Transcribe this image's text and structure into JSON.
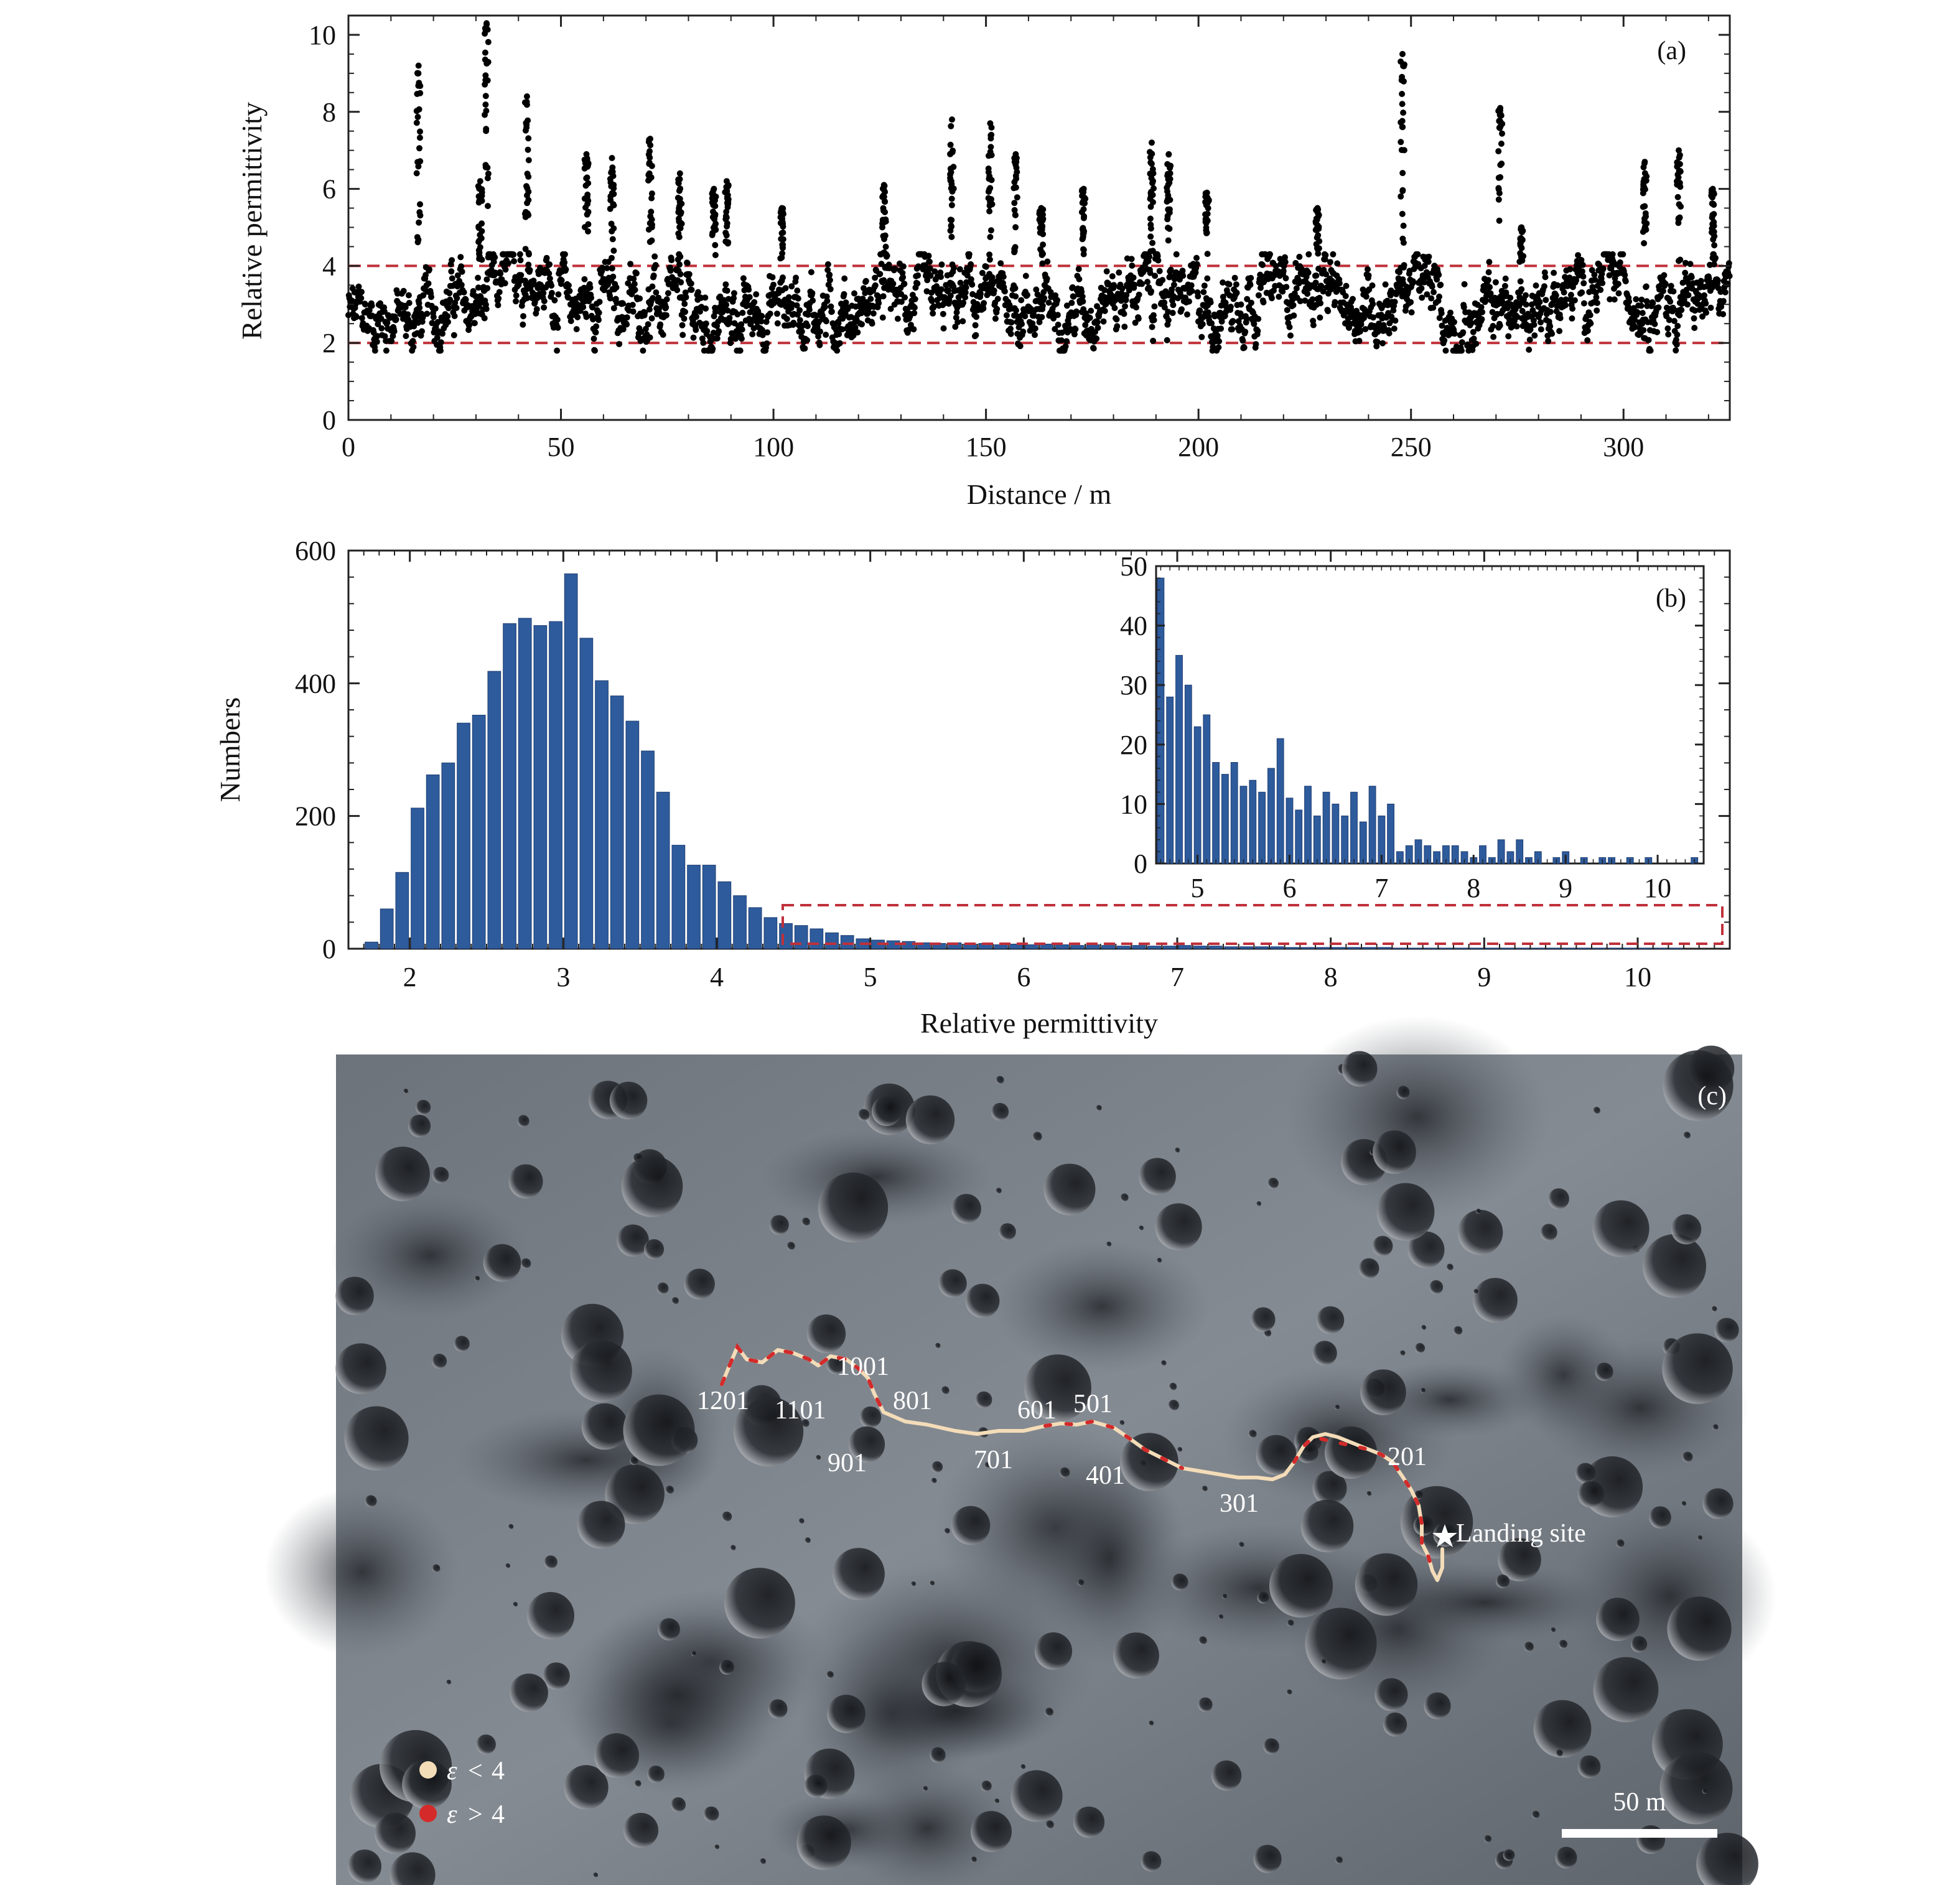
{
  "chart_data": [
    {
      "panel": "(a)",
      "type": "scatter",
      "xlabel": "Distance / m",
      "ylabel": "Relative permittivity",
      "xlim": [
        0,
        325
      ],
      "ylim": [
        0,
        10.5
      ],
      "x_ticks": [
        "0",
        "50",
        "100",
        "150",
        "200",
        "250",
        "300"
      ],
      "y_ticks": [
        "0",
        "2",
        "4",
        "6",
        "8",
        "10"
      ],
      "reference_lines": [
        2,
        4
      ],
      "grid": false,
      "colors": {
        "points": "#000000",
        "reference_line": "#c0303a"
      },
      "baseline_profile": [
        [
          0,
          2.7
        ],
        [
          5,
          2.6
        ],
        [
          10,
          2.8
        ],
        [
          15,
          2.5
        ],
        [
          20,
          2.9
        ],
        [
          25,
          3.1
        ],
        [
          30,
          2.8
        ],
        [
          35,
          3.3
        ],
        [
          40,
          4.2
        ],
        [
          45,
          3.7
        ],
        [
          50,
          3.2
        ],
        [
          55,
          3.0
        ],
        [
          60,
          3.3
        ],
        [
          65,
          2.9
        ],
        [
          70,
          3.1
        ],
        [
          75,
          2.8
        ],
        [
          80,
          3.0
        ],
        [
          85,
          2.4
        ],
        [
          90,
          2.7
        ],
        [
          95,
          2.6
        ],
        [
          100,
          3.0
        ],
        [
          105,
          3.1
        ],
        [
          110,
          2.8
        ],
        [
          115,
          2.9
        ],
        [
          120,
          2.8
        ],
        [
          125,
          3.3
        ],
        [
          130,
          3.2
        ],
        [
          135,
          3.0
        ],
        [
          140,
          2.9
        ],
        [
          145,
          3.2
        ],
        [
          150,
          3.0
        ],
        [
          155,
          3.1
        ],
        [
          160,
          3.0
        ],
        [
          165,
          2.8
        ],
        [
          170,
          2.9
        ],
        [
          175,
          3.1
        ],
        [
          180,
          3.3
        ],
        [
          185,
          3.4
        ],
        [
          190,
          3.5
        ],
        [
          195,
          3.2
        ],
        [
          200,
          3.0
        ],
        [
          205,
          2.9
        ],
        [
          210,
          3.3
        ],
        [
          215,
          3.4
        ],
        [
          220,
          3.5
        ],
        [
          225,
          3.6
        ],
        [
          230,
          3.2
        ],
        [
          235,
          3.0
        ],
        [
          240,
          3.0
        ],
        [
          245,
          3.1
        ],
        [
          250,
          3.6
        ],
        [
          255,
          3.3
        ],
        [
          260,
          2.4
        ],
        [
          265,
          2.5
        ],
        [
          270,
          3.0
        ],
        [
          275,
          2.7
        ],
        [
          280,
          3.1
        ],
        [
          285,
          3.2
        ],
        [
          290,
          3.3
        ],
        [
          295,
          3.5
        ],
        [
          300,
          3.6
        ],
        [
          305,
          3.3
        ],
        [
          310,
          3.0
        ],
        [
          315,
          3.1
        ],
        [
          320,
          3.0
        ],
        [
          325,
          3.2
        ]
      ],
      "spikes": [
        [
          16.5,
          9.2
        ],
        [
          31,
          6.2
        ],
        [
          32.5,
          10.3
        ],
        [
          42,
          8.4
        ],
        [
          56,
          6.9
        ],
        [
          62,
          6.8
        ],
        [
          71,
          7.3
        ],
        [
          78,
          6.4
        ],
        [
          86,
          6.0
        ],
        [
          89,
          6.2
        ],
        [
          102,
          5.5
        ],
        [
          126,
          6.1
        ],
        [
          142,
          7.8
        ],
        [
          151,
          7.7
        ],
        [
          157,
          6.9
        ],
        [
          163,
          5.5
        ],
        [
          173,
          6.0
        ],
        [
          189,
          7.2
        ],
        [
          193,
          6.9
        ],
        [
          202,
          5.9
        ],
        [
          228,
          5.5
        ],
        [
          248,
          9.5
        ],
        [
          271,
          8.1
        ],
        [
          276,
          5.0
        ],
        [
          305,
          6.7
        ],
        [
          313,
          7.0
        ],
        [
          321,
          6.0
        ]
      ]
    },
    {
      "panel": "(b)",
      "type": "bar",
      "xlabel": "Relative permittivity",
      "ylabel": "Numbers",
      "xlim": [
        1.6,
        10.6
      ],
      "ylim": [
        0,
        600
      ],
      "x_ticks": [
        "2",
        "3",
        "4",
        "5",
        "6",
        "7",
        "8",
        "9",
        "10"
      ],
      "y_ticks": [
        "0",
        "200",
        "400",
        "600"
      ],
      "bin_width": 0.1,
      "bins_start": 1.75,
      "values": [
        10,
        60,
        115,
        212,
        262,
        280,
        340,
        352,
        418,
        490,
        498,
        487,
        493,
        565,
        468,
        404,
        381,
        343,
        298,
        236,
        156,
        126,
        126,
        101,
        80,
        62,
        47,
        38,
        35,
        30,
        24,
        20,
        15,
        13,
        12,
        11,
        9,
        8,
        9,
        7,
        8,
        6,
        7,
        6,
        7,
        6,
        5,
        6,
        5,
        4,
        5,
        4,
        4,
        5,
        4,
        4,
        3,
        3,
        3,
        3,
        2,
        2,
        2,
        2,
        2,
        2,
        2,
        1,
        1,
        1,
        1,
        1,
        1,
        1,
        1,
        1,
        1,
        1,
        1,
        1,
        1,
        1,
        1,
        1,
        1,
        1
      ],
      "colors": {
        "bars": "#2e5b9c",
        "bar_edge": "#1f3e72",
        "highlight_box": "#c0303a"
      },
      "inset": {
        "type": "bar",
        "xlim": [
          4.55,
          10.5
        ],
        "ylim": [
          0,
          50
        ],
        "x_ticks": [
          "5",
          "6",
          "7",
          "8",
          "9",
          "10"
        ],
        "y_ticks": [
          "0",
          "10",
          "20",
          "30",
          "40",
          "50"
        ],
        "bins_start": 4.6,
        "bin_width": 0.1,
        "values": [
          48,
          28,
          35,
          30,
          23,
          25,
          17,
          15,
          17,
          13,
          14,
          12,
          16,
          21,
          11,
          9,
          13,
          8,
          12,
          10,
          8,
          12,
          7,
          13,
          8,
          10,
          2,
          3,
          4,
          3,
          2,
          3,
          3,
          2,
          1,
          3,
          1,
          4,
          2,
          4,
          1,
          2,
          0,
          1,
          2,
          0,
          1,
          0,
          1,
          1,
          0,
          1,
          0,
          1,
          0,
          0,
          0,
          0,
          1
        ]
      }
    }
  ],
  "map": {
    "panel_label": "(c)",
    "route_labels": [
      "1201",
      "1101",
      "1001",
      "901",
      "801",
      "701",
      "601",
      "501",
      "401",
      "301",
      "201"
    ],
    "landing_label": "Landing site",
    "legend": [
      {
        "symbol": "ε",
        "relation": "<",
        "value": "4",
        "color": "#f3dcb8"
      },
      {
        "symbol": "ε",
        "relation": ">",
        "value": "4",
        "color": "#d42a2a"
      }
    ],
    "scale_bar_label": "50 m",
    "colors": {
      "surface_dark": "#3a3f45",
      "surface_light": "#8c9299",
      "route_low": "#f3dcb8",
      "route_high": "#d42a2a"
    }
  }
}
